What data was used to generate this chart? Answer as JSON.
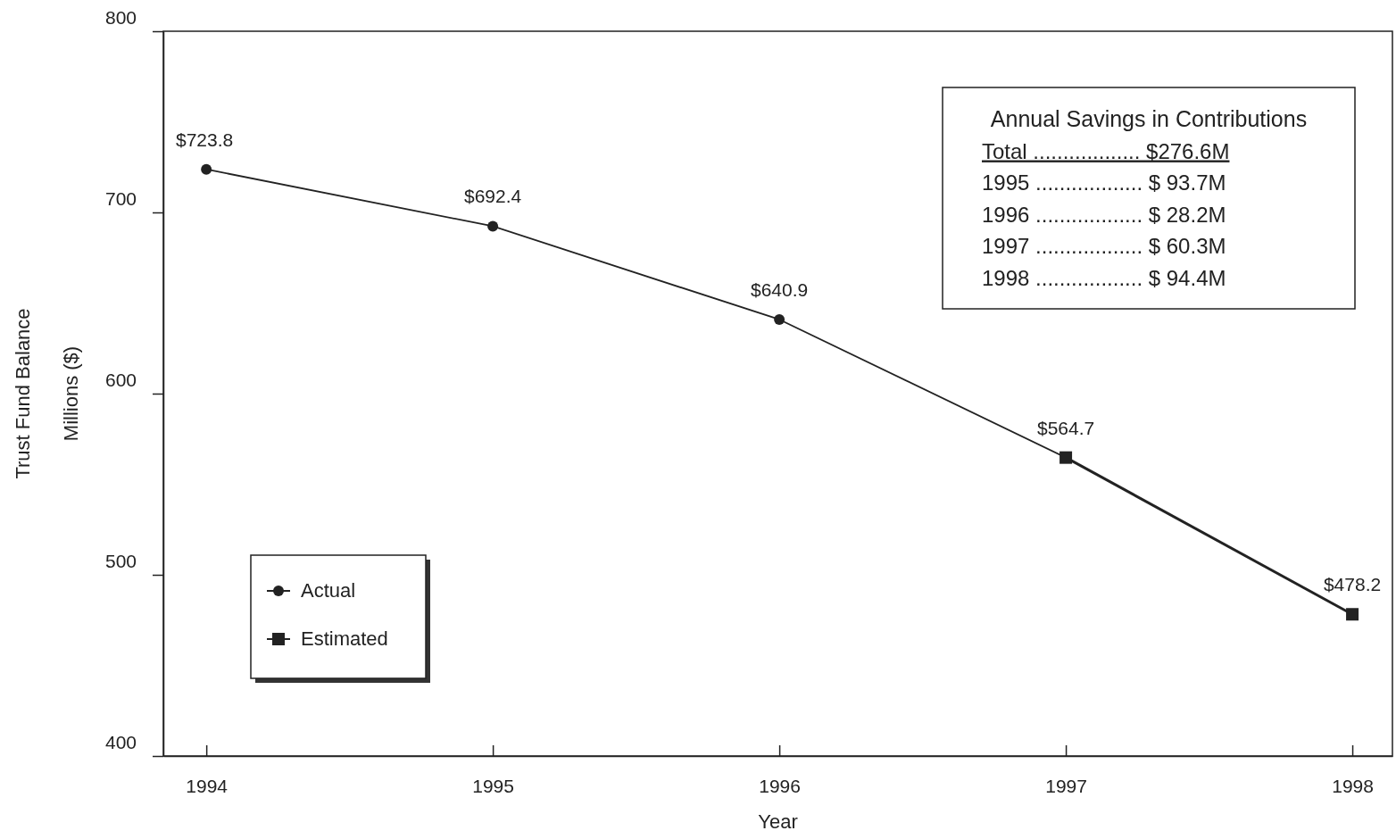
{
  "chart_data": {
    "type": "line",
    "xlabel": "Year",
    "ylabel": "Trust Fund Balance\nMillions ($)",
    "xlim": [
      1993.85,
      1998.14
    ],
    "xticks": [
      1994,
      1995,
      1996,
      1997,
      1998
    ],
    "ylim": [
      400,
      800
    ],
    "yticks": [
      400,
      500,
      600,
      700,
      800
    ],
    "grid": false,
    "legend": "bottom left",
    "series": [
      {
        "name": "Actual",
        "color": "#222222",
        "marker": "circle",
        "x": [
          1994,
          1995,
          1996,
          1997
        ],
        "values": [
          723.8,
          692.4,
          640.9,
          564.7
        ],
        "value_labels": [
          "$723.8",
          "$692.4",
          "$640.9",
          "$564.7"
        ]
      },
      {
        "name": "Estimated",
        "color": "#222222",
        "marker": "square",
        "x": [
          1997,
          1998
        ],
        "values": [
          564.7,
          478.2
        ],
        "value_labels": [
          null,
          "$478.2"
        ]
      }
    ],
    "annotations": [
      "Annual Savings in Contributions",
      "Total .................. $276.6M",
      "1995 .................. $ 93.7M",
      "1996 .................. $ 28.2M",
      "1997 .................. $ 60.3M",
      "1998 .................. $ 94.4M"
    ]
  }
}
